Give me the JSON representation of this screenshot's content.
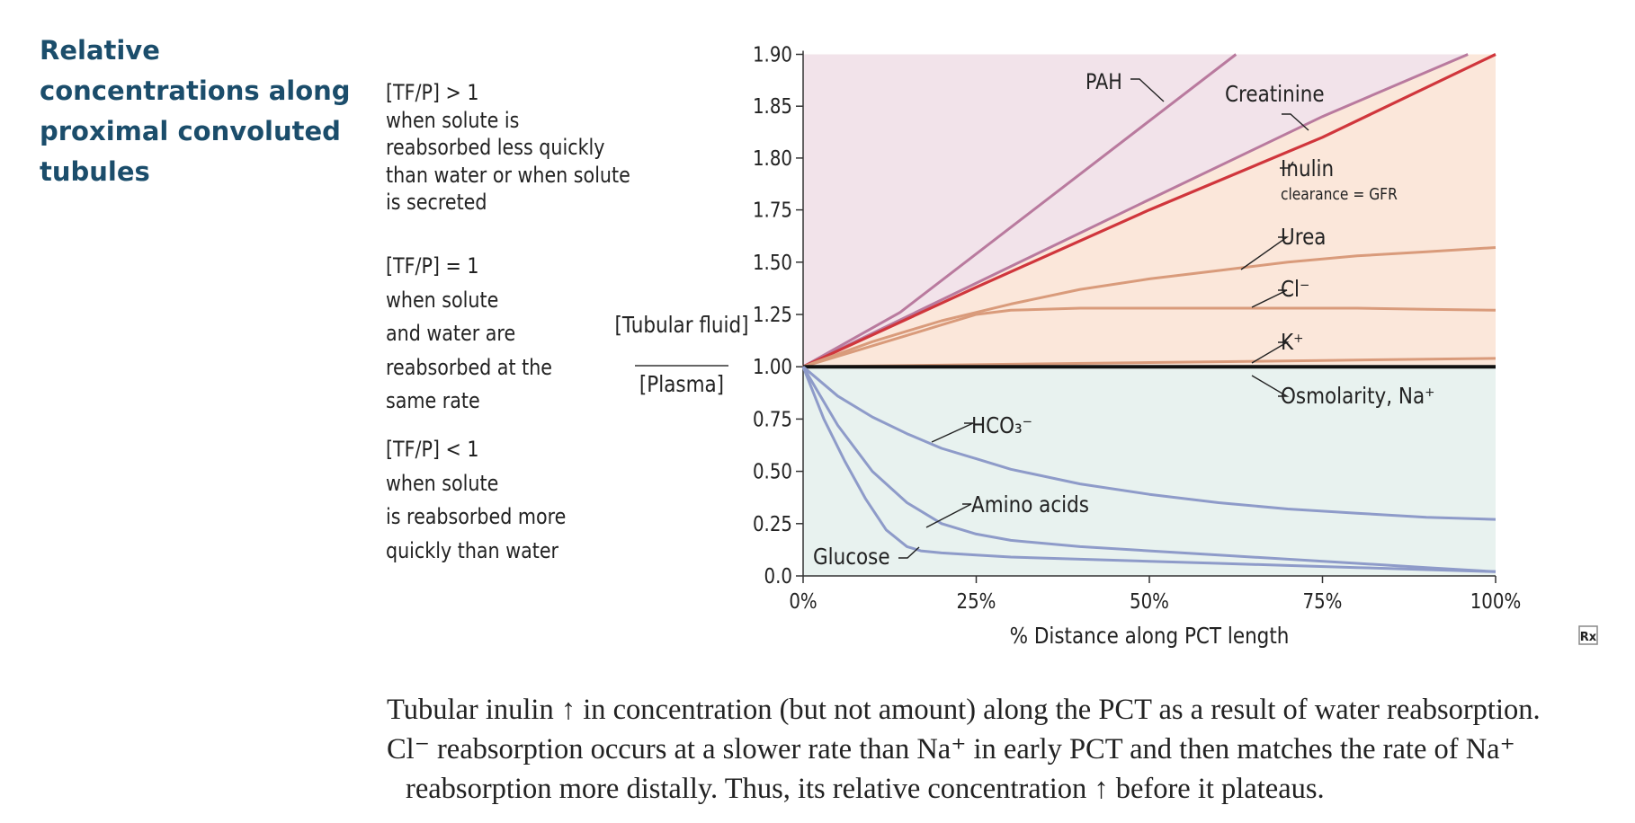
{
  "title_lines": [
    "Relative",
    "concentrations along",
    "proximal convoluted",
    "tubules"
  ],
  "rules": [
    {
      "heading": "[TF/P] > 1",
      "lines": [
        "when solute is",
        "reabsorbed less quickly",
        "than water or when solute",
        "is secreted"
      ]
    },
    {
      "heading": "[TF/P] = 1",
      "lines": [
        "when solute",
        "and water are",
        "reabsorbed at the",
        "same rate"
      ]
    },
    {
      "heading": "[TF/P] < 1",
      "lines": [
        "when solute",
        "is reabsorbed more",
        "quickly than water"
      ]
    }
  ],
  "caption_lines": [
    "Tubular inulin ↑ in concentration (but not amount) along the PCT as a result of water reabsorption.",
    "Cl⁻ reabsorption occurs at a slower rate than Na⁺ in early PCT and then matches the rate of Na⁺",
    "reabsorption more distally. Thus, its relative concentration ↑ before it plateaus."
  ],
  "logo_text": "Rx",
  "chart_data": {
    "type": "line",
    "title": "",
    "xlabel": "% Distance along PCT length",
    "ylabel_numerator": "[Tubular fluid]",
    "ylabel_denominator": "[Plasma]",
    "x_ticks": [
      "0%",
      "25%",
      "50%",
      "75%",
      "100%"
    ],
    "y_ticks": [
      "0.0",
      "0.25",
      "0.50",
      "0.75",
      "1.00",
      "1.25",
      "1.50",
      "1.75",
      "1.80",
      "1.85",
      "1.90"
    ],
    "y_tick_values": [
      0,
      0.25,
      0.5,
      0.75,
      1.0,
      1.25,
      1.5,
      1.75,
      1.8,
      1.85,
      1.9
    ],
    "y_scale": "piecewise: linear 0–1.75, expanded 1.75–1.90",
    "xlim": [
      0,
      100
    ],
    "ylim": [
      0,
      1.9
    ],
    "regions": {
      "above_1_color": "#f2e3ea",
      "concentrating_color": "#fbe7da",
      "below_1_color": "#e8f2ef"
    },
    "series": [
      {
        "name": "PAH",
        "color": "#b97a9e",
        "x": [
          0,
          14,
          62.5
        ],
        "y": [
          1.0,
          1.26,
          1.9
        ]
      },
      {
        "name": "Creatinine",
        "color": "#b97a9e",
        "x": [
          0,
          25,
          50,
          75,
          96
        ],
        "y": [
          1.0,
          1.4,
          1.76,
          1.84,
          1.9
        ]
      },
      {
        "name": "Inulin",
        "subtitle": "clearance = GFR",
        "color": "#d0363c",
        "x": [
          0,
          25,
          50,
          75,
          100
        ],
        "y": [
          1.0,
          1.38,
          1.75,
          1.82,
          1.9
        ]
      },
      {
        "name": "Urea",
        "color": "#d99b7b",
        "x": [
          0,
          5,
          10,
          15,
          20,
          25,
          30,
          40,
          50,
          60,
          70,
          80,
          90,
          100
        ],
        "y": [
          1.0,
          1.06,
          1.12,
          1.17,
          1.22,
          1.26,
          1.3,
          1.37,
          1.42,
          1.46,
          1.5,
          1.53,
          1.55,
          1.57
        ]
      },
      {
        "name": "Cl⁻",
        "color": "#d99b7b",
        "x": [
          0,
          5,
          10,
          15,
          20,
          25,
          30,
          40,
          50,
          60,
          70,
          80,
          90,
          100
        ],
        "y": [
          1.0,
          1.05,
          1.1,
          1.15,
          1.2,
          1.25,
          1.27,
          1.28,
          1.28,
          1.28,
          1.28,
          1.28,
          1.275,
          1.27
        ]
      },
      {
        "name": "K⁺",
        "color": "#d99b7b",
        "x": [
          0,
          25,
          50,
          75,
          100
        ],
        "y": [
          1.0,
          1.01,
          1.02,
          1.03,
          1.04
        ]
      },
      {
        "name": "Osmolarity, Na⁺",
        "color": "#111111",
        "x": [
          0,
          100
        ],
        "y": [
          1.0,
          1.0
        ]
      },
      {
        "name": "HCO₃⁻",
        "color": "#8e9bc9",
        "x": [
          0,
          5,
          10,
          15,
          20,
          25,
          30,
          40,
          50,
          60,
          70,
          80,
          90,
          100
        ],
        "y": [
          1.0,
          0.86,
          0.76,
          0.68,
          0.61,
          0.56,
          0.51,
          0.44,
          0.39,
          0.35,
          0.32,
          0.3,
          0.28,
          0.27
        ]
      },
      {
        "name": "Amino acids",
        "color": "#8e9bc9",
        "x": [
          0,
          5,
          10,
          15,
          20,
          25,
          30,
          40,
          50,
          60,
          70,
          80,
          90,
          100
        ],
        "y": [
          1.0,
          0.72,
          0.5,
          0.35,
          0.25,
          0.2,
          0.17,
          0.14,
          0.12,
          0.1,
          0.08,
          0.06,
          0.04,
          0.02
        ]
      },
      {
        "name": "Glucose",
        "color": "#8e9bc9",
        "x": [
          0,
          3,
          6,
          9,
          12,
          15,
          17,
          20,
          25,
          30,
          40,
          50,
          60,
          70,
          80,
          90,
          100
        ],
        "y": [
          1.0,
          0.75,
          0.55,
          0.37,
          0.22,
          0.14,
          0.12,
          0.11,
          0.1,
          0.09,
          0.08,
          0.07,
          0.06,
          0.05,
          0.04,
          0.03,
          0.02
        ]
      }
    ],
    "labels": [
      {
        "text": "PAH",
        "anchor_x": 53,
        "anchor_y": 1.885
      },
      {
        "text": "Creatinine",
        "anchor_x": 73.5,
        "anchor_y": 1.855
      },
      {
        "text": "Inulin",
        "anchor_x": 69,
        "anchor_y": 1.8
      },
      {
        "text": "clearance = GFR",
        "anchor_x": 69,
        "anchor_y": 1.777
      },
      {
        "text": "Urea",
        "anchor_x": 69,
        "anchor_y": 1.6
      },
      {
        "text": "Cl⁻",
        "anchor_x": 69,
        "anchor_y": 1.35
      },
      {
        "text": "K⁺",
        "anchor_x": 69,
        "anchor_y": 1.1
      },
      {
        "text": "Osmolarity, Na⁺",
        "anchor_x": 69,
        "anchor_y": 0.85
      },
      {
        "text": "HCO₃⁻",
        "anchor_x": 24,
        "anchor_y": 0.72
      },
      {
        "text": "Amino acids",
        "anchor_x": 24,
        "anchor_y": 0.33
      },
      {
        "text": "Glucose",
        "anchor_x": 1,
        "anchor_y": 0.08
      }
    ]
  }
}
